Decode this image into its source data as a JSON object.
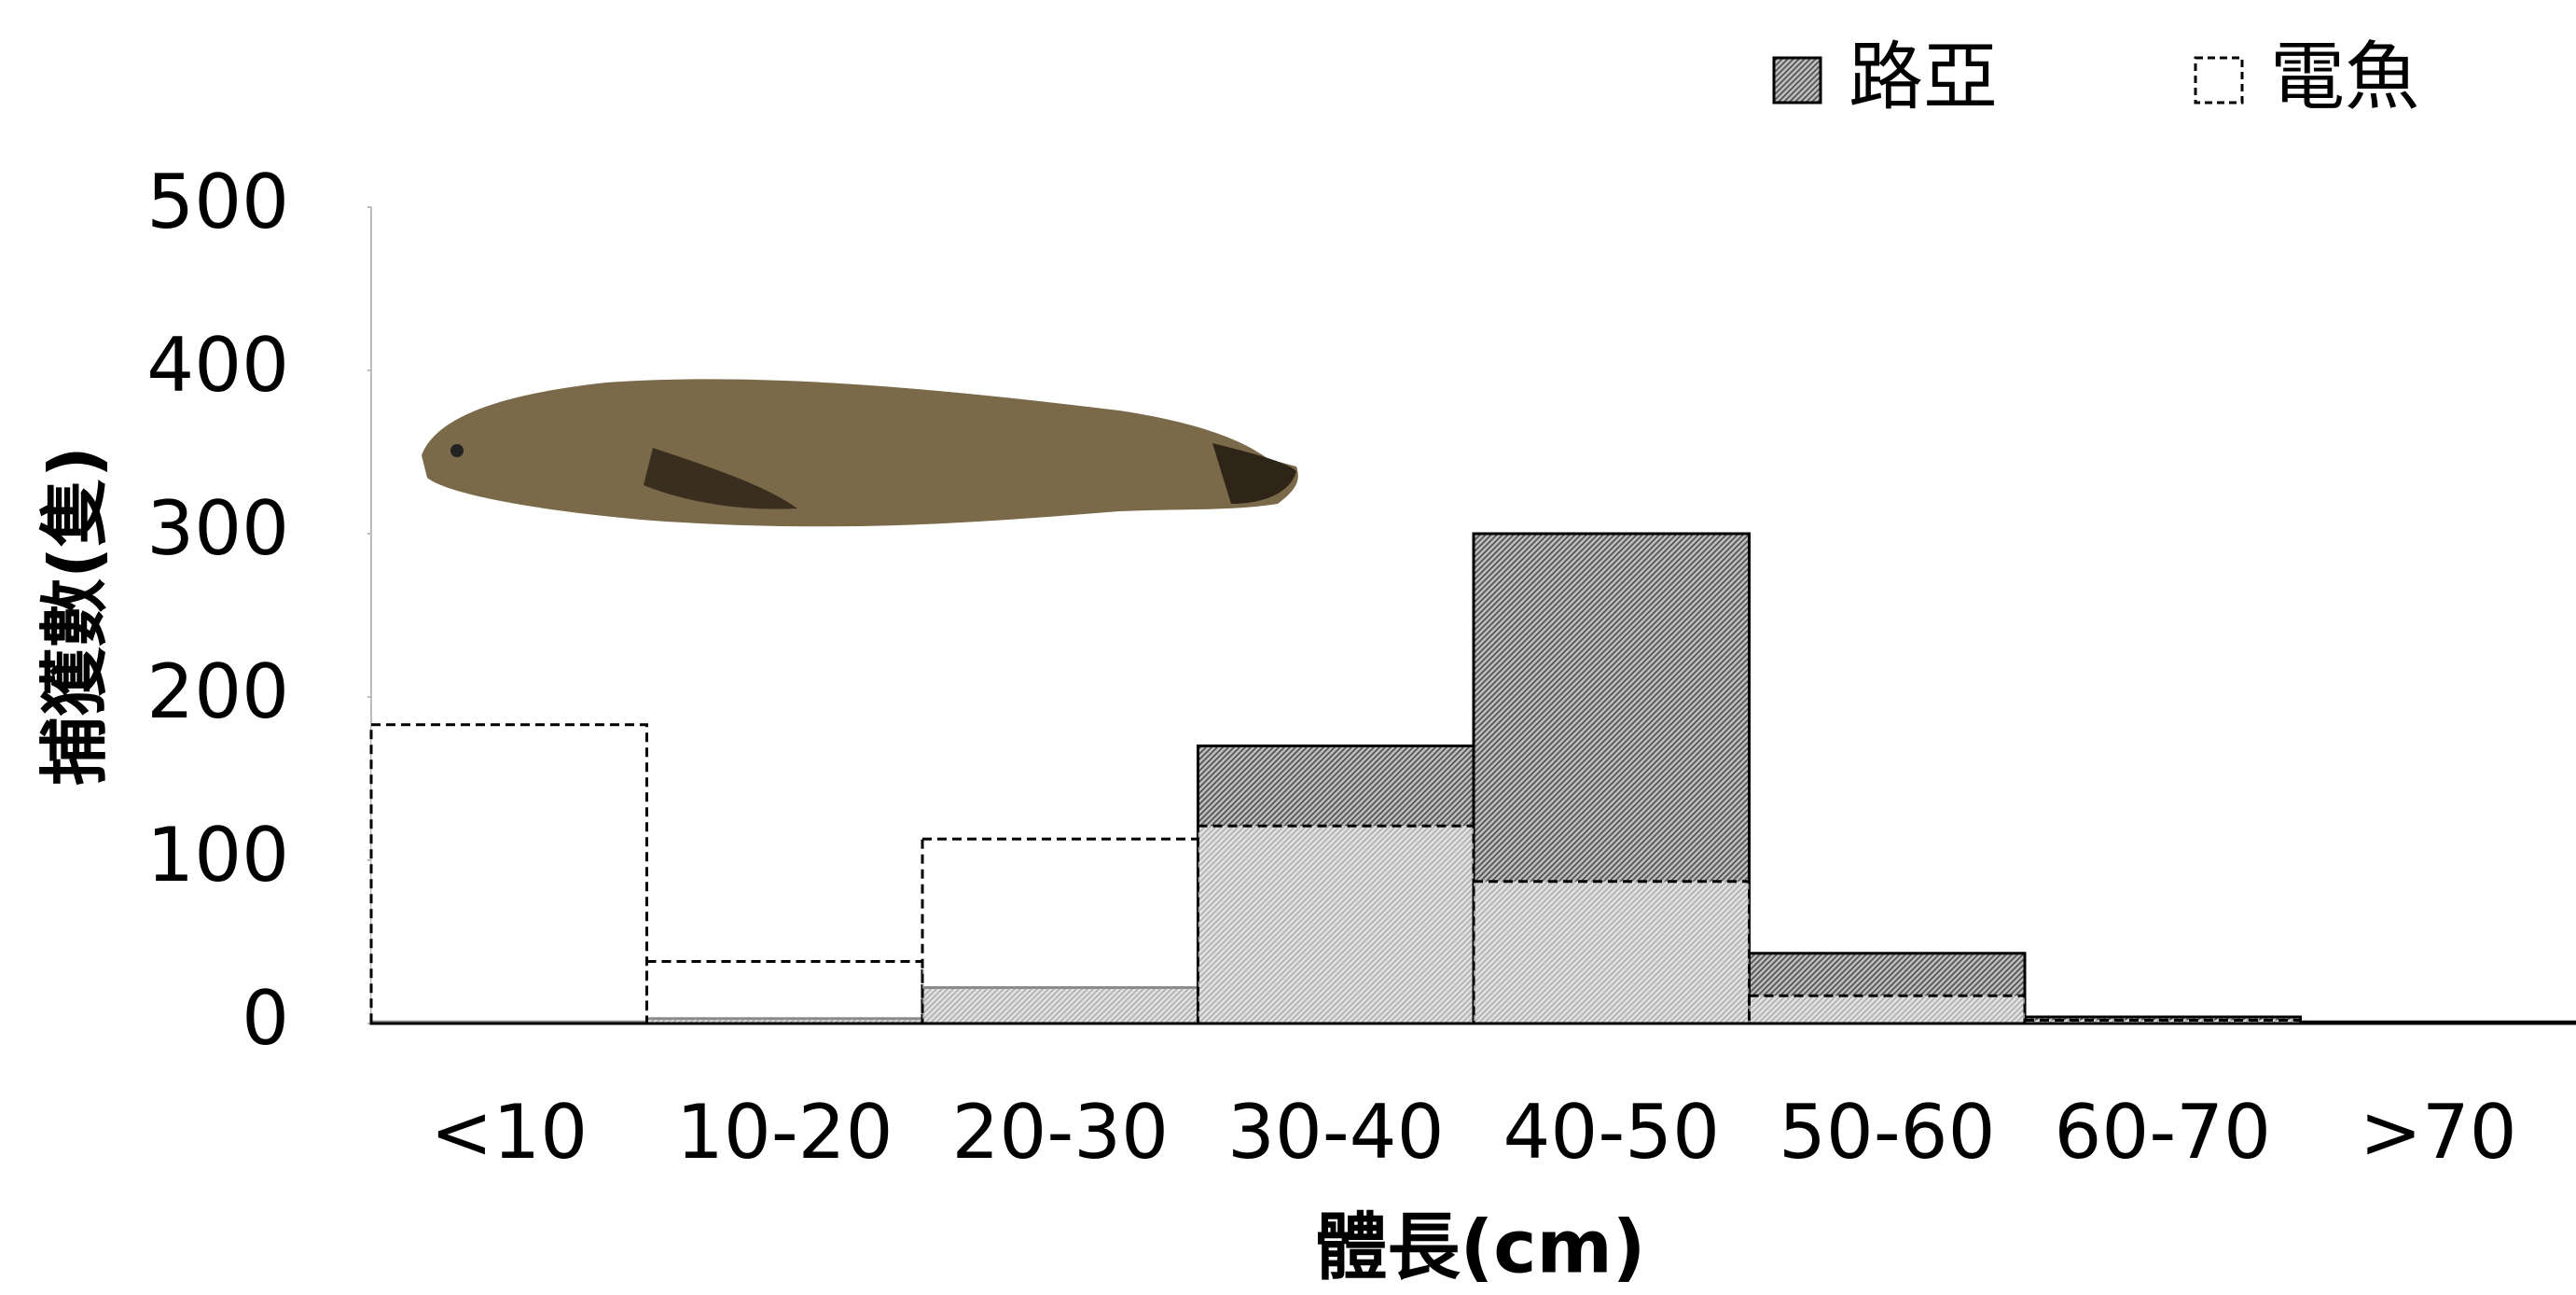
{
  "chart_data": {
    "type": "bar",
    "x_label": "體長(cm)",
    "y_label": "捕獲數(隻)",
    "categories": [
      "<10",
      "10-20",
      "20-30",
      "30-40",
      "40-50",
      "50-60",
      "60-70",
      ">70"
    ],
    "series": [
      {
        "name": "路亞",
        "color": "#4d4d4d",
        "values": [
          1,
          3,
          22,
          170,
          300,
          43,
          4,
          1
        ]
      },
      {
        "name": "電魚",
        "color": "#ffffff",
        "values": [
          183,
          38,
          113,
          121,
          87,
          17,
          2,
          0
        ]
      }
    ],
    "ylim": [
      0,
      500
    ],
    "yticks": [
      0,
      100,
      200,
      300,
      400,
      500
    ],
    "grid": false
  }
}
